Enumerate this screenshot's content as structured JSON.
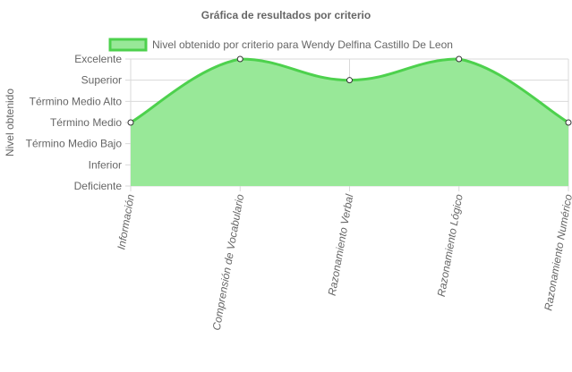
{
  "chart_data": {
    "type": "area",
    "title": "Gráfica de resultados por criterio",
    "ylabel": "Nivel obtenido",
    "xlabel": "",
    "legend_position": "top",
    "grid": true,
    "categories": [
      "Información",
      "Comprensión de Vocabulario",
      "Razonamiento Verbal",
      "Razonamiento Lógico",
      "Razonamiento Numérico"
    ],
    "y_levels": [
      "Deficiente",
      "Inferior",
      "Término Medio Bajo",
      "Término Medio",
      "Término Medio Alto",
      "Superior",
      "Excelente"
    ],
    "ylim": [
      1,
      7
    ],
    "series": [
      {
        "name": "Nivel obtenido por criterio para Wendy Delfina Castillo De Leon",
        "values": [
          4,
          7,
          6,
          7,
          4
        ],
        "value_labels": [
          "Término Medio",
          "Excelente",
          "Superior",
          "Excelente",
          "Término Medio"
        ]
      }
    ],
    "colors": {
      "line": "#4dd14d",
      "fill": "#98e898",
      "grid": "#d9d9d9",
      "point_fill": "#ffffff",
      "point_stroke": "#333333",
      "text": "#666666"
    }
  }
}
